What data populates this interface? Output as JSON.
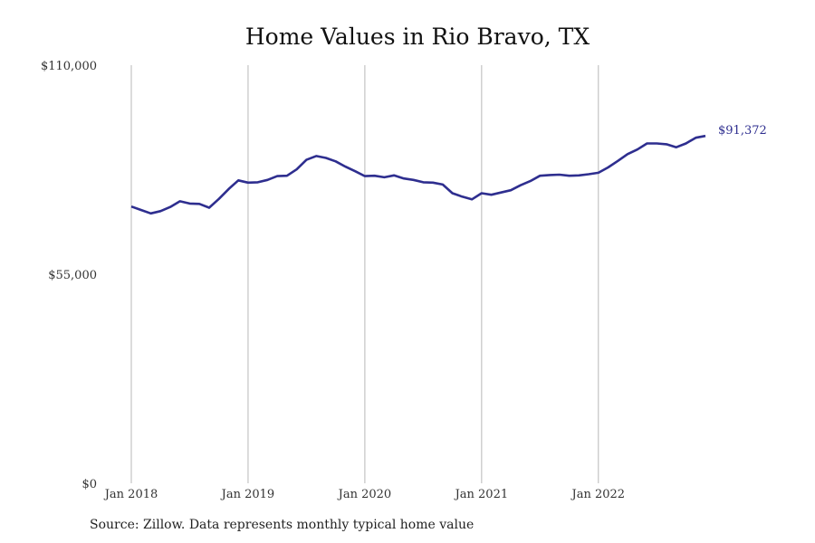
{
  "chart_data": {
    "type": "line",
    "title": "Home Values in Rio Bravo, TX",
    "xlabel": "",
    "ylabel": "",
    "ylim": [
      0,
      110000
    ],
    "y_ticks": [
      0,
      55000,
      110000
    ],
    "y_tick_labels": [
      "$0",
      "$55,000",
      "$110,000"
    ],
    "x_tick_labels": [
      "Jan 2018",
      "Jan 2019",
      "Jan 2020",
      "Jan 2021",
      "Jan 2022"
    ],
    "grid": "vertical lines at each January",
    "legend": "none",
    "line_color": "#2e2e8f",
    "end_label": "$91,372",
    "series": [
      {
        "x": [
          "2018-01",
          "2018-02",
          "2018-03",
          "2018-04",
          "2018-05",
          "2018-06",
          "2018-07",
          "2018-08",
          "2018-09",
          "2018-10",
          "2018-11",
          "2018-12",
          "2019-01",
          "2019-02",
          "2019-03",
          "2019-04",
          "2019-05",
          "2019-06",
          "2019-07",
          "2019-08",
          "2019-09",
          "2019-10",
          "2019-11",
          "2019-12",
          "2020-01",
          "2020-02",
          "2020-03",
          "2020-04",
          "2020-05",
          "2020-06",
          "2020-07",
          "2020-08",
          "2020-09",
          "2020-10",
          "2020-11",
          "2020-12",
          "2021-01",
          "2021-02",
          "2021-03",
          "2021-04",
          "2021-05",
          "2021-06",
          "2021-07",
          "2021-08",
          "2021-09",
          "2021-10",
          "2021-11",
          "2021-12",
          "2022-01",
          "2022-02",
          "2022-03",
          "2022-04",
          "2022-05",
          "2022-06",
          "2022-07",
          "2022-08",
          "2022-09",
          "2022-10",
          "2022-11",
          "2022-12",
          "2023-01"
        ],
        "values": [
          72800,
          71900,
          71000,
          71600,
          72700,
          74200,
          73600,
          73500,
          72500,
          74800,
          77400,
          79700,
          79100,
          79200,
          79800,
          80800,
          80900,
          82600,
          85100,
          86100,
          85600,
          84700,
          83300,
          82100,
          80800,
          80900,
          80500,
          81000,
          80200,
          79800,
          79200,
          79100,
          78600,
          76300,
          75400,
          74700,
          76300,
          75900,
          76500,
          77100,
          78400,
          79500,
          80900,
          81100,
          81200,
          80900,
          81000,
          81300,
          81700,
          83100,
          84800,
          86600,
          87800,
          89400,
          89400,
          89200,
          88400,
          89400,
          90900,
          91372,
          91372
        ]
      }
    ]
  },
  "source_note": "Source: Zillow. Data represents monthly typical home value"
}
